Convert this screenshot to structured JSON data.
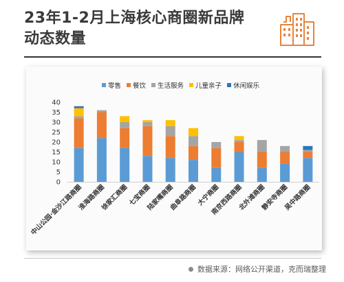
{
  "title_lines": [
    "23年1-2月上海核心商圈新品牌",
    "动态数量"
  ],
  "source": "数据来源：网络公开渠道，克而瑞整理",
  "colors": {
    "title": "#3a3a3a",
    "accent": "#e8833a",
    "logo_icon": "building-icon"
  },
  "chart_data": {
    "type": "bar",
    "stacked": true,
    "categories": [
      "中山公园·金沙江路商圈",
      "淮海路商圈",
      "徐家汇商圈",
      "七宝商圈",
      "陆家嘴商圈",
      "曲阜路商圈",
      "大宁商圈",
      "南京西路商圈",
      "北外滩商圈",
      "静安寺商圈",
      "吴中路商圈"
    ],
    "series": [
      {
        "name": "零售",
        "color": "#5b9bd5",
        "values": [
          17,
          22,
          17,
          13,
          12,
          11,
          7,
          15,
          7,
          9,
          12
        ]
      },
      {
        "name": "餐饮",
        "color": "#ed7d31",
        "values": [
          15,
          13,
          10,
          15,
          11,
          7,
          10,
          5,
          8,
          6,
          3
        ]
      },
      {
        "name": "生活服务",
        "color": "#a5a5a5",
        "values": [
          1,
          1,
          3,
          2,
          5,
          5,
          3,
          1,
          6,
          3,
          1
        ]
      },
      {
        "name": "儿童亲子",
        "color": "#ffc000",
        "values": [
          4,
          0,
          3,
          1,
          3,
          4,
          0,
          2,
          0,
          0,
          0
        ]
      },
      {
        "name": "休闲娱乐",
        "color": "#2e75b6",
        "values": [
          1,
          0,
          0,
          0,
          0,
          0,
          0,
          0,
          0,
          0,
          2
        ]
      }
    ],
    "yticks": [
      0,
      5,
      10,
      15,
      20,
      25,
      30,
      35,
      40
    ],
    "ylim": [
      0,
      40
    ],
    "legend_position": "top"
  }
}
